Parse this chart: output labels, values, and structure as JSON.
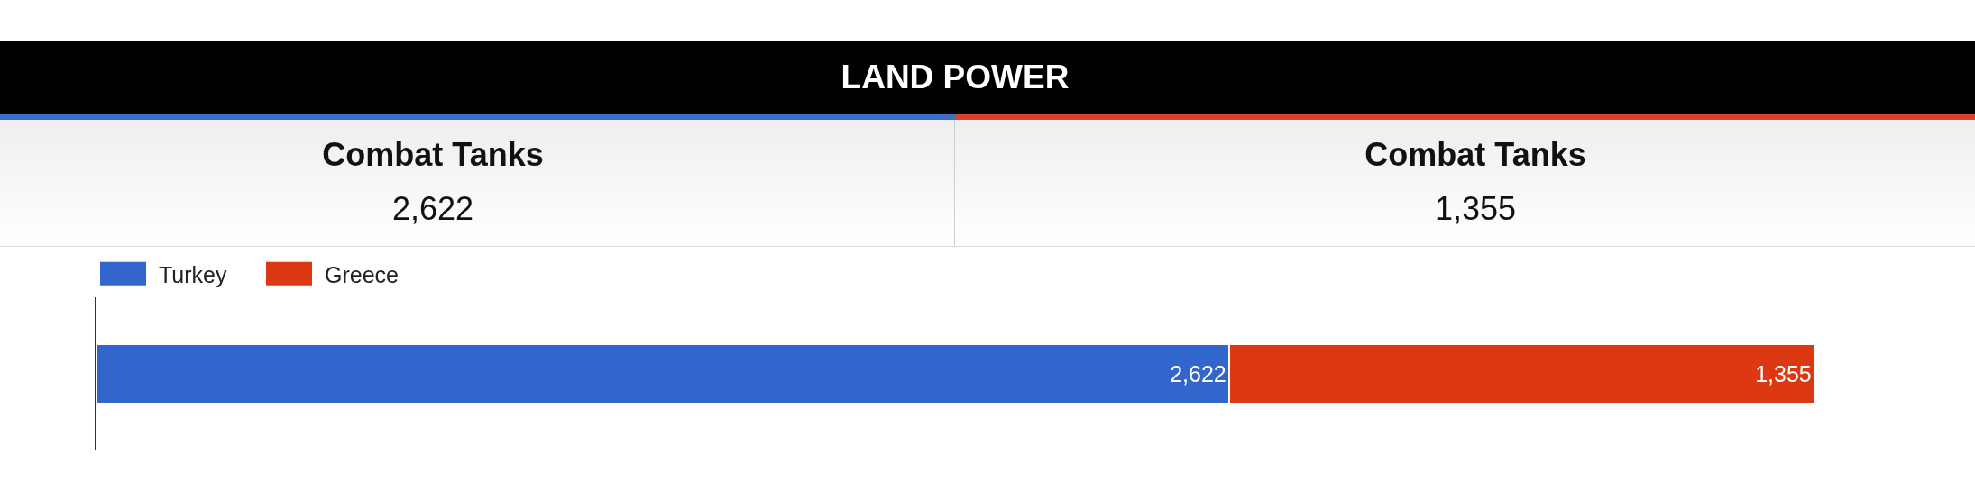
{
  "chart_data": [
    {
      "type": "other",
      "title": "LAND POWER",
      "categories": [
        "Combat Tanks",
        "Combat Tanks"
      ],
      "value_labels": [
        "2,622",
        "1,355"
      ],
      "colors": [
        "#3f6dc4",
        "#d8442a"
      ]
    },
    {
      "type": "bar",
      "orientation": "horizontal",
      "stacked": true,
      "categories": [
        null
      ],
      "series": [
        {
          "name": "Turkey",
          "color": "#3366cc",
          "values": [
            2622
          ],
          "value_labels": [
            "2,622"
          ]
        },
        {
          "name": "Greece",
          "color": "#dc3912",
          "values": [
            1355
          ],
          "value_labels": [
            "1,355"
          ]
        }
      ],
      "legend": "top left",
      "tick_labels": false
    }
  ]
}
